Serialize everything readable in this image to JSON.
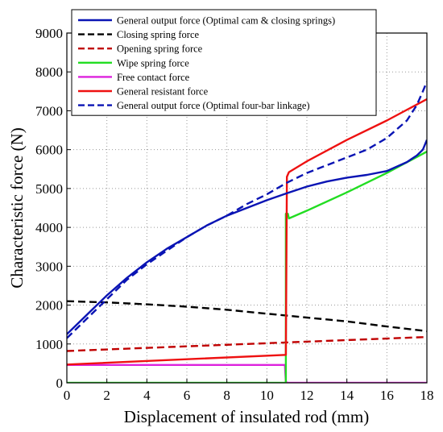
{
  "chart_data": {
    "type": "line",
    "title": "",
    "xlabel": "Displacement of insulated rod (mm)",
    "ylabel": "Characteristic force (N)",
    "xlim": [
      0,
      18
    ],
    "ylim": [
      0,
      9000
    ],
    "xticks": [
      0,
      2,
      4,
      6,
      8,
      10,
      12,
      14,
      16,
      18
    ],
    "yticks": [
      0,
      1000,
      2000,
      3000,
      4000,
      5000,
      6000,
      7000,
      8000,
      9000
    ],
    "grid": "dotted",
    "legend_position": "top-left",
    "series": [
      {
        "name": "General output force (Optimal cam & closing springs)",
        "color": "#0a14b4",
        "dash": "solid",
        "x": [
          0,
          1,
          2,
          3,
          4,
          5,
          6,
          7,
          8,
          9,
          10,
          11,
          12,
          13,
          14,
          15,
          16,
          17,
          17.5,
          17.8,
          18
        ],
        "y": [
          1250,
          1750,
          2250,
          2700,
          3100,
          3450,
          3750,
          4050,
          4300,
          4500,
          4700,
          4880,
          5050,
          5180,
          5280,
          5350,
          5450,
          5680,
          5850,
          6000,
          6250
        ]
      },
      {
        "name": "Closing spring force",
        "color": "#000000",
        "dash": "dashed",
        "x": [
          0,
          2,
          4,
          6,
          8,
          10,
          12,
          14,
          16,
          18
        ],
        "y": [
          2100,
          2070,
          2020,
          1960,
          1880,
          1780,
          1680,
          1580,
          1450,
          1330
        ]
      },
      {
        "name": "Opening spring force",
        "color": "#c00000",
        "dash": "dashed",
        "x": [
          0,
          18
        ],
        "y": [
          820,
          1180
        ]
      },
      {
        "name": "Wipe spring force",
        "color": "#22dd22",
        "dash": "solid",
        "x": [
          0,
          10.95,
          10.95,
          11.05,
          11.1,
          12,
          14,
          16,
          18
        ],
        "y": [
          0,
          0,
          4350,
          4350,
          4230,
          4430,
          4900,
          5400,
          5950
        ]
      },
      {
        "name": "Free contact force",
        "color": "#dd22dd",
        "dash": "solid",
        "x": [
          0,
          10.9,
          10.95,
          11.05,
          18
        ],
        "y": [
          460,
          460,
          20,
          0,
          0
        ]
      },
      {
        "name": "General resistant force",
        "color": "#ee1111",
        "dash": "solid",
        "x": [
          0,
          10.95,
          11.0,
          11.1,
          12,
          14,
          16,
          18
        ],
        "y": [
          470,
          720,
          5300,
          5420,
          5700,
          6250,
          6750,
          7300
        ]
      },
      {
        "name": "General output force (Optimal four-bar linkage)",
        "color": "#0a14b4",
        "dash": "dashed",
        "x": [
          0,
          1,
          2,
          3,
          4,
          5,
          6,
          7,
          8,
          9,
          10,
          11,
          12,
          13,
          14,
          15,
          16,
          17,
          17.5,
          17.8,
          18
        ],
        "y": [
          1150,
          1650,
          2150,
          2650,
          3050,
          3400,
          3750,
          4050,
          4300,
          4600,
          4850,
          5150,
          5400,
          5600,
          5800,
          6000,
          6300,
          6750,
          7150,
          7500,
          7750
        ]
      }
    ]
  }
}
